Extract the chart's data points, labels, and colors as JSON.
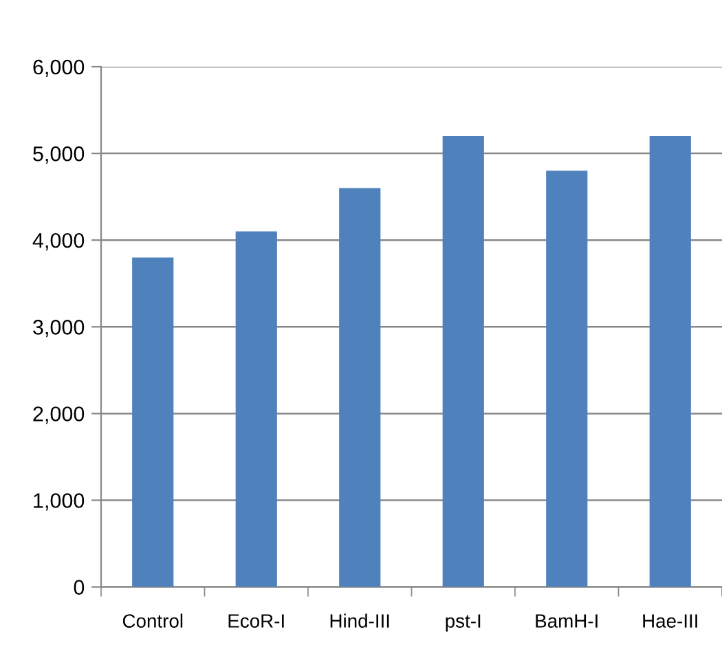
{
  "chart_data": {
    "type": "bar",
    "categories": [
      "Control",
      "EcoR-I",
      "Hind-III",
      "pst-I",
      "BamH-I",
      "Hae-III"
    ],
    "values": [
      3800,
      4100,
      4600,
      5200,
      4800,
      5200
    ],
    "color": "#4f81bd",
    "ylim": [
      0,
      6000
    ],
    "yticks": [
      0,
      {
        "value": 1000,
        "label": "1,000"
      },
      {
        "value": 2000,
        "label": "2,000"
      },
      {
        "value": 3000,
        "label": "3,000"
      },
      {
        "value": 4000,
        "label": "4,000"
      },
      {
        "value": 5000,
        "label": "5,000"
      },
      {
        "value": 6000,
        "label": "6,000"
      }
    ],
    "grid": "y",
    "legend": false
  }
}
